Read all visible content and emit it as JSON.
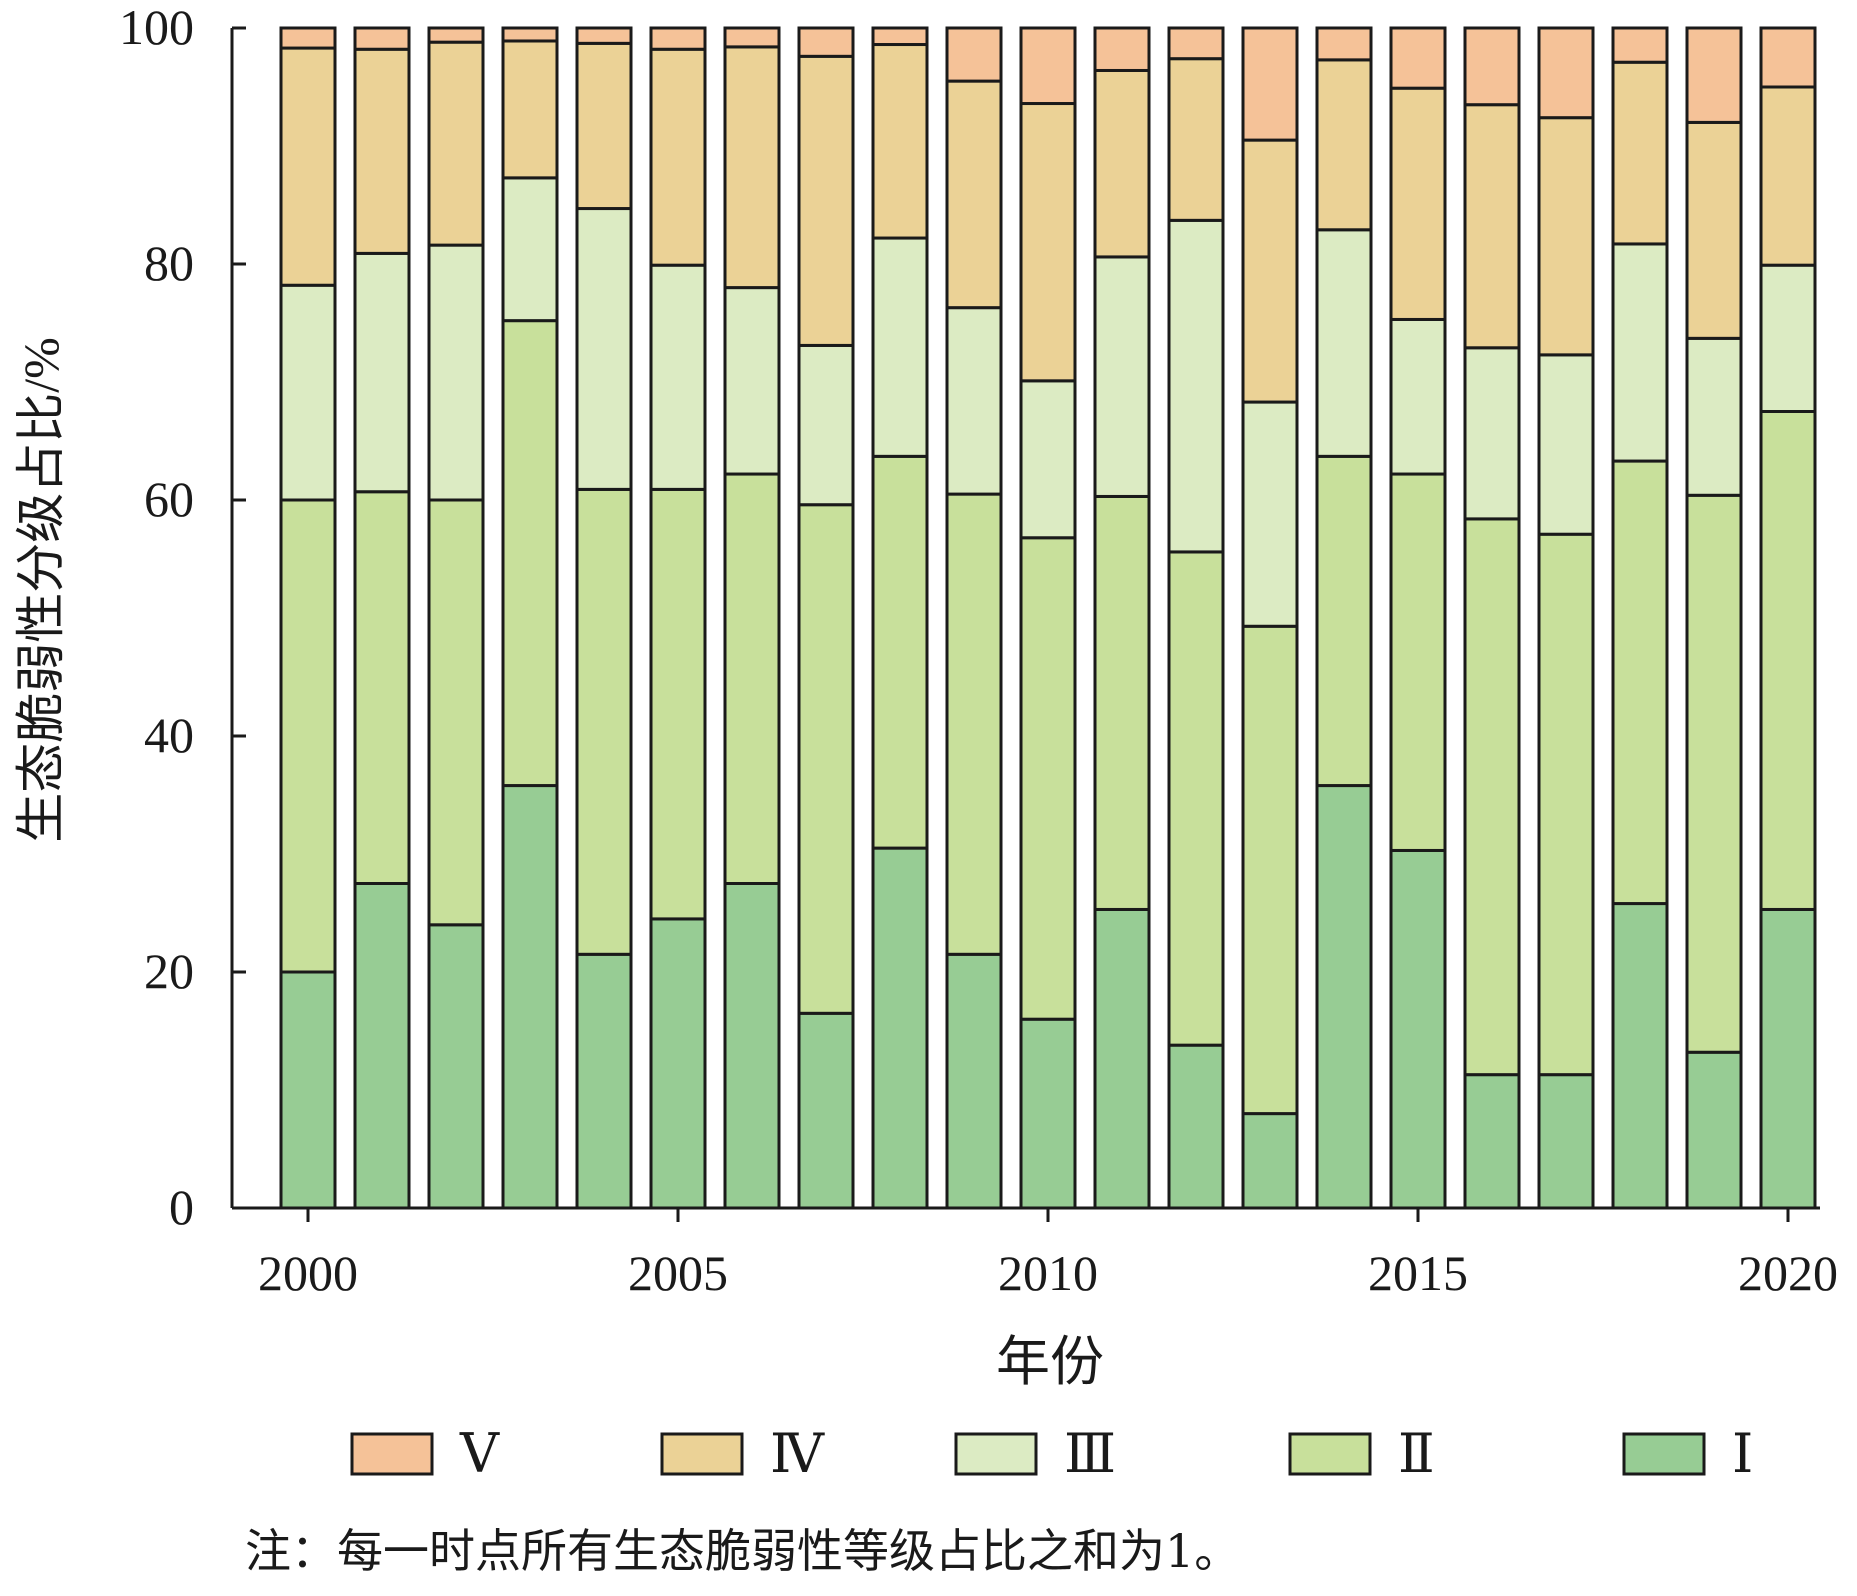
{
  "chart_data": {
    "type": "bar",
    "stacked": true,
    "title": "",
    "xlabel": "年份",
    "ylabel": "生态脆弱性分级占比/%",
    "ylim": [
      0,
      100
    ],
    "yticks": [
      "0",
      "20",
      "40",
      "60",
      "80",
      "100"
    ],
    "xticks": [
      "2000",
      "2005",
      "2010",
      "2015",
      "2020"
    ],
    "categories": [
      "2000",
      "2001",
      "2002",
      "2003",
      "2004",
      "2005",
      "2006",
      "2007",
      "2008",
      "2009",
      "2010",
      "2011",
      "2012",
      "2013",
      "2014",
      "2015",
      "2016",
      "2017",
      "2018",
      "2019",
      "2020"
    ],
    "series": [
      {
        "name": "Ⅰ",
        "color": "#97cc94",
        "values": [
          20.0,
          27.5,
          24.0,
          35.8,
          21.5,
          24.5,
          27.5,
          16.5,
          30.5,
          21.5,
          16.0,
          25.3,
          13.8,
          8.0,
          35.8,
          30.3,
          11.3,
          11.3,
          25.8,
          13.2,
          25.3
        ]
      },
      {
        "name": "Ⅱ",
        "color": "#c8e09b",
        "values": [
          40.0,
          33.2,
          36.0,
          39.4,
          39.4,
          36.4,
          34.7,
          43.1,
          33.2,
          39.0,
          40.8,
          35.0,
          41.8,
          41.3,
          27.9,
          31.9,
          47.1,
          45.8,
          37.5,
          47.2,
          42.2
        ]
      },
      {
        "name": "Ⅲ",
        "color": "#dcebc3",
        "values": [
          18.2,
          20.2,
          21.6,
          12.1,
          23.8,
          19.0,
          15.8,
          13.5,
          18.5,
          15.8,
          13.3,
          20.3,
          28.1,
          19.0,
          19.2,
          13.1,
          14.5,
          15.2,
          18.4,
          13.3,
          12.4
        ]
      },
      {
        "name": "Ⅳ",
        "color": "#ebd296",
        "values": [
          20.1,
          17.3,
          17.2,
          11.6,
          14.0,
          18.3,
          20.4,
          24.5,
          16.4,
          19.2,
          23.5,
          15.8,
          13.7,
          22.2,
          14.4,
          19.6,
          20.6,
          20.1,
          15.4,
          18.3,
          15.1
        ]
      },
      {
        "name": "Ⅴ",
        "color": "#f5c298",
        "values": [
          1.7,
          1.8,
          1.2,
          1.1,
          1.3,
          1.8,
          1.6,
          2.4,
          1.4,
          4.5,
          6.4,
          3.6,
          2.6,
          9.5,
          2.7,
          5.1,
          6.5,
          7.6,
          2.9,
          8.0,
          5.0
        ]
      }
    ],
    "legend": {
      "placement": "bottom",
      "order": [
        "Ⅴ",
        "Ⅳ",
        "Ⅲ",
        "Ⅱ",
        "Ⅰ"
      ]
    },
    "grid": false
  },
  "note": "注：每一时点所有生态脆弱性等级占比之和为1。"
}
